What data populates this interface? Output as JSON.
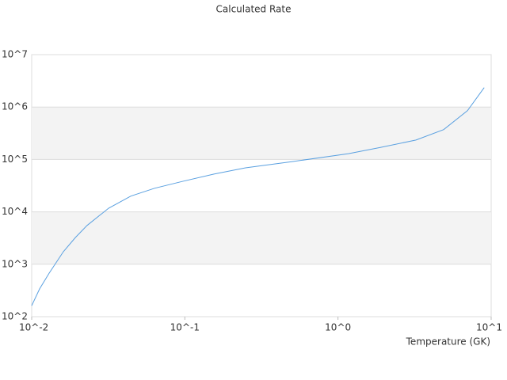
{
  "chart_data": {
    "type": "line",
    "title": "Calculated Rate",
    "x_label": "Temperature (GK)",
    "log_x": true,
    "log_y": true,
    "grid": true,
    "alternate_bands": true,
    "xlim": [
      0.01,
      10
    ],
    "ylim": [
      100,
      10000000
    ],
    "xticks": [
      {
        "value": 0.01,
        "label": "10^-2"
      },
      {
        "value": 0.1,
        "label": "10^-1"
      },
      {
        "value": 1,
        "label": "10^0"
      },
      {
        "value": 10,
        "label": "10^1"
      }
    ],
    "yticks": [
      {
        "value": 100,
        "label": "10^2"
      },
      {
        "value": 1000,
        "label": "10^3"
      },
      {
        "value": 10000,
        "label": "10^4"
      },
      {
        "value": 100000,
        "label": "10^5"
      },
      {
        "value": 1000000,
        "label": "10^6"
      },
      {
        "value": 10000000,
        "label": "10^7"
      }
    ],
    "series": [
      {
        "color": "#5aa0e0",
        "x": [
          0.01,
          0.01127,
          0.013,
          0.0161,
          0.0193,
          0.023,
          0.0318,
          0.0444,
          0.0634,
          0.0962,
          0.155,
          0.249,
          0.509,
          1.17,
          1.89,
          3.23,
          4.9,
          7.0,
          9.0
        ],
        "values": [
          162,
          339,
          676,
          1738,
          3236,
          5495,
          11749,
          19953,
          28184,
          38019,
          52480,
          69183,
          91201,
          128825,
          169824,
          234423,
          371535,
          851138,
          2344229
        ]
      }
    ]
  }
}
